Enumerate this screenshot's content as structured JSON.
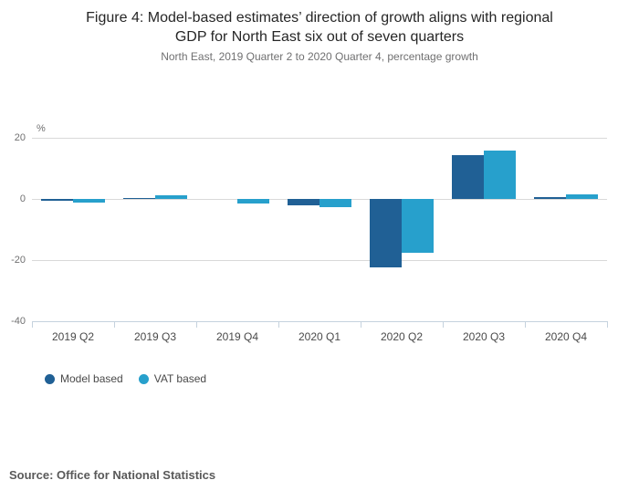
{
  "figure": {
    "title_line1": "Figure 4: Model-based estimates’ direction of growth aligns with regional",
    "title_line2": "GDP for North East six out of seven quarters",
    "subtitle": "North East, 2019 Quarter 2 to 2020 Quarter 4, percentage growth",
    "source": "Source: Office for National Statistics"
  },
  "chart_data": {
    "type": "bar",
    "title": "Figure 4: Model-based estimates’ direction of growth aligns with regional GDP for North East six out of seven quarters",
    "subtitle": "North East, 2019 Quarter 2 to 2020 Quarter 4, percentage growth",
    "unit_label": "%",
    "categories": [
      "2019 Q2",
      "2019 Q3",
      "2019 Q4",
      "2020 Q1",
      "2020 Q2",
      "2020 Q3",
      "2020 Q4"
    ],
    "series": [
      {
        "name": "Model based",
        "color": "#206095",
        "values": [
          -0.6,
          0.3,
          0.0,
          -2.1,
          -22.3,
          14.4,
          0.7
        ]
      },
      {
        "name": "VAT based",
        "color": "#27a0cc",
        "values": [
          -1.2,
          1.1,
          -1.5,
          -2.8,
          -17.5,
          15.8,
          1.5
        ]
      }
    ],
    "ylabel": "%",
    "xlabel": "",
    "ylim": [
      -40,
      20
    ],
    "yticks": [
      20,
      0,
      -20,
      -40
    ],
    "grid": true,
    "legend_position": "bottom"
  },
  "colors": {
    "model_based": "#206095",
    "vat_based": "#27a0cc",
    "gridline": "#d9d9d9",
    "axis": "#c5d2de"
  }
}
